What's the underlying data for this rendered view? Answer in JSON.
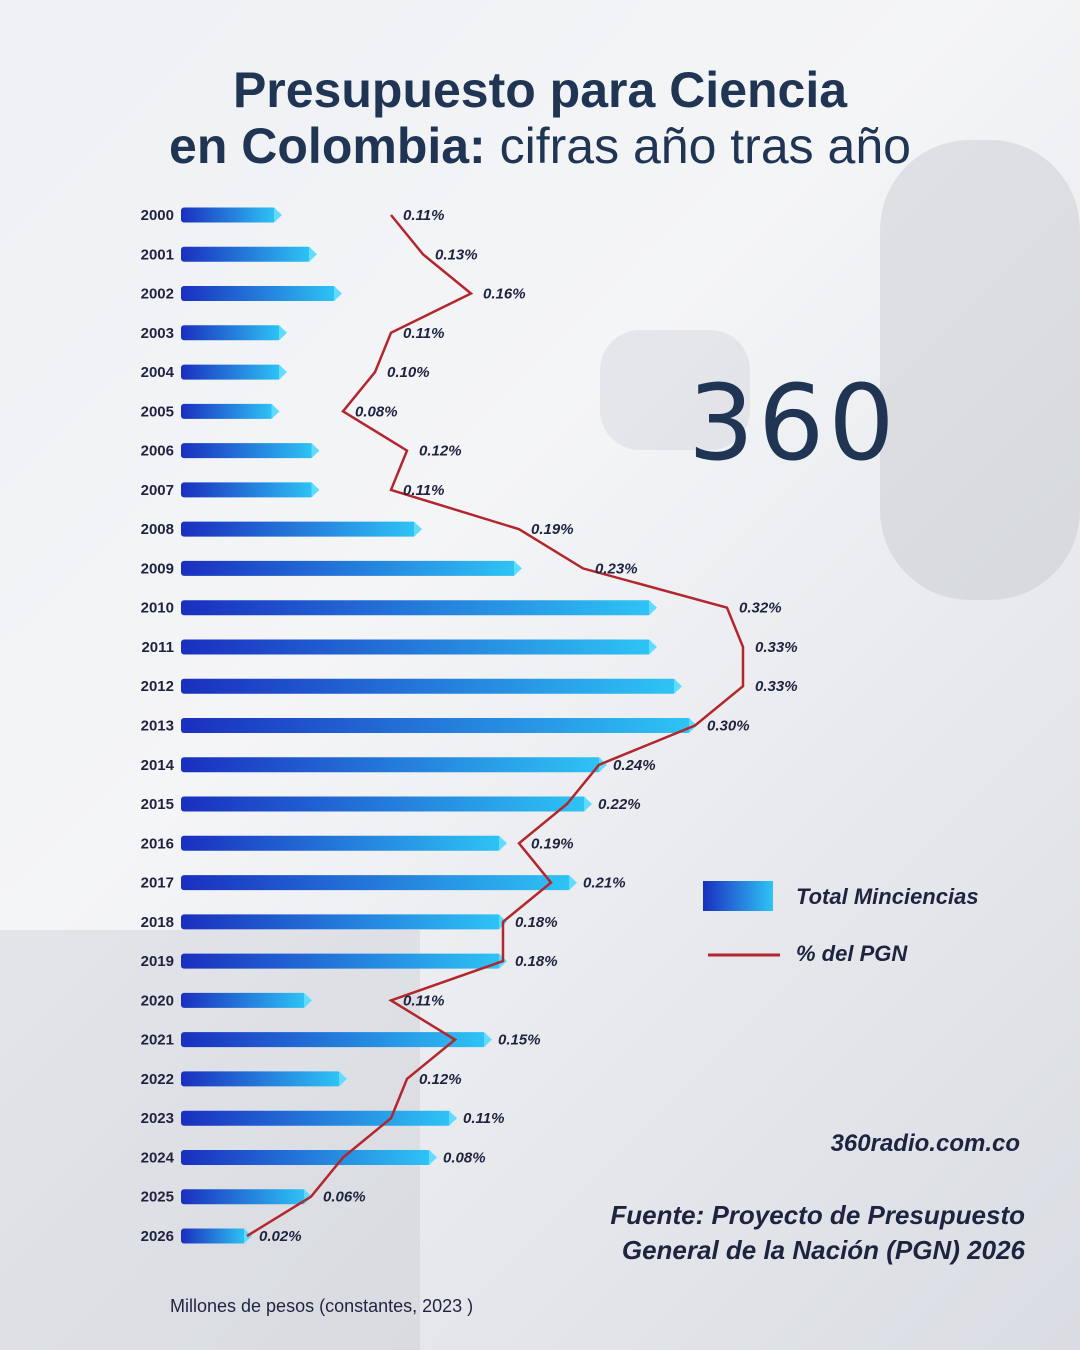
{
  "title": {
    "line1": "Presupuesto para Ciencia",
    "line2_bold": "en Colombia:",
    "line2_light": "cifras año tras año"
  },
  "logo": "360",
  "legend": {
    "bar_label": "Total Minciencias",
    "line_label": "% del PGN"
  },
  "website": "360radio.com.co",
  "source": {
    "line1": "Fuente: Proyecto de Presupuesto",
    "line2": "General de la Nación (PGN) 2026"
  },
  "units_note": "Millones de pesos (constantes, 2023 )",
  "colors": {
    "bar_dark": "#1a2fbf",
    "bar_light": "#2ec4f5",
    "line": "#b3262d",
    "text": "#1e2440",
    "title": "#1f3553"
  },
  "chart_data": {
    "type": "bar",
    "orientation": "horizontal",
    "categories": [
      "2000",
      "2001",
      "2002",
      "2003",
      "2004",
      "2005",
      "2006",
      "2007",
      "2008",
      "2009",
      "2010",
      "2011",
      "2012",
      "2013",
      "2014",
      "2015",
      "2016",
      "2017",
      "2018",
      "2019",
      "2020",
      "2021",
      "2022",
      "2023",
      "2024",
      "2025",
      "2026"
    ],
    "series": [
      {
        "name": "Total Minciencias",
        "type": "bar",
        "values": [
          190,
          260,
          310,
          200,
          200,
          185,
          265,
          265,
          470,
          670,
          940,
          940,
          990,
          1020,
          840,
          810,
          640,
          780,
          640,
          640,
          250,
          610,
          320,
          540,
          500,
          250,
          130
        ]
      },
      {
        "name": "% del PGN",
        "type": "line",
        "unit": "%",
        "values": [
          0.11,
          0.13,
          0.16,
          0.11,
          0.1,
          0.08,
          0.12,
          0.11,
          0.19,
          0.23,
          0.32,
          0.33,
          0.33,
          0.3,
          0.24,
          0.22,
          0.19,
          0.21,
          0.18,
          0.18,
          0.11,
          0.15,
          0.12,
          0.11,
          0.08,
          0.06,
          0.02
        ],
        "labels": [
          "0.11%",
          "0.13%",
          "0.16%",
          "0.11%",
          "0.10%",
          "0.08%",
          "0.12%",
          "0.11%",
          "0.19%",
          "0.23%",
          "0.32%",
          "0.33%",
          "0.33%",
          "0.30%",
          "0.24%",
          "0.22%",
          "0.19%",
          "0.21%",
          "0.18%",
          "0.18%",
          "0.11%",
          "0.15%",
          "0.12%",
          "0.11%",
          "0.08%",
          "0.06%",
          "0.02%"
        ]
      }
    ],
    "xlabel": "Millones de pesos (constantes, 2023 )",
    "legend_position": "right"
  }
}
